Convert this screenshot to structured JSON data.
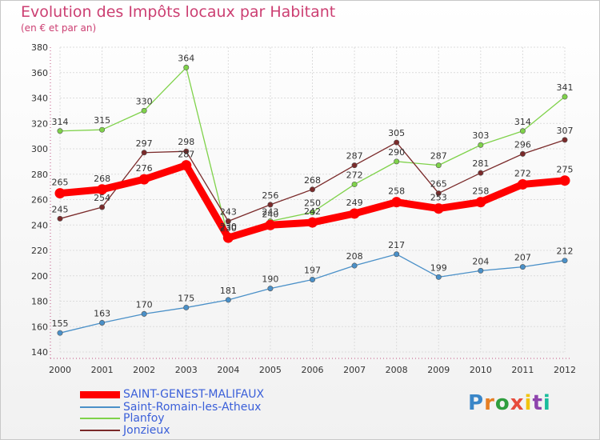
{
  "header": {
    "title": "Evolution des Impôts locaux par Habitant",
    "subtitle": "(en € et par an)"
  },
  "logo": {
    "text": "Proxiti",
    "colors": [
      "#3a86c8",
      "#e67e22",
      "#2e9e3e",
      "#e74c3c",
      "#f1c40f",
      "#8e44ad",
      "#1abc9c"
    ]
  },
  "chart_data": {
    "type": "line",
    "title": "Evolution des Impôts locaux par Habitant",
    "subtitle": "(en € et par an)",
    "x": [
      "2000",
      "2001",
      "2002",
      "2003",
      "2004",
      "2005",
      "2006",
      "2007",
      "2008",
      "2009",
      "2010",
      "2011",
      "2012"
    ],
    "ylim": [
      140,
      380
    ],
    "yticks": [
      "140",
      "160",
      "180",
      "200",
      "220",
      "240",
      "260",
      "280",
      "300",
      "320",
      "340",
      "360",
      "380"
    ],
    "grid": true,
    "legend": "bottom-left",
    "series": [
      {
        "name": "SAINT-GENEST-MALIFAUX",
        "color": "#ff0000",
        "values": [
          265,
          268,
          276,
          287,
          230,
          240,
          242,
          249,
          258,
          253,
          258,
          272,
          275
        ],
        "labels": [
          "265",
          "268",
          "276",
          "287",
          "230",
          "240",
          "242",
          "249",
          "258",
          "253",
          "258",
          "272",
          "275"
        ]
      },
      {
        "name": "Saint-Romain-les-Atheux",
        "color": "#4a90c8",
        "values": [
          155,
          163,
          170,
          175,
          181,
          190,
          197,
          208,
          217,
          199,
          204,
          207,
          212
        ],
        "labels": [
          "155",
          "163",
          "170",
          "175",
          "181",
          "190",
          "197",
          "208",
          "217",
          "199",
          "204",
          "207",
          "212"
        ]
      },
      {
        "name": "Planfoy",
        "color": "#7fd24a",
        "values": [
          314,
          315,
          330,
          364,
          230,
          243,
          250,
          272,
          290,
          287,
          303,
          314,
          341
        ],
        "labels": [
          "314",
          "315",
          "330",
          "364",
          "230",
          "243",
          "250",
          "272",
          "290",
          "287",
          "303",
          "314",
          "341"
        ]
      },
      {
        "name": "Jonzieux",
        "color": "#7a2a2a",
        "values": [
          245,
          254,
          297,
          298,
          243,
          256,
          268,
          287,
          305,
          265,
          281,
          296,
          307
        ],
        "labels": [
          "245",
          "254",
          "297",
          "298",
          "243",
          "256",
          "268",
          "287",
          "305",
          "265",
          "281",
          "296",
          "307"
        ]
      }
    ]
  }
}
